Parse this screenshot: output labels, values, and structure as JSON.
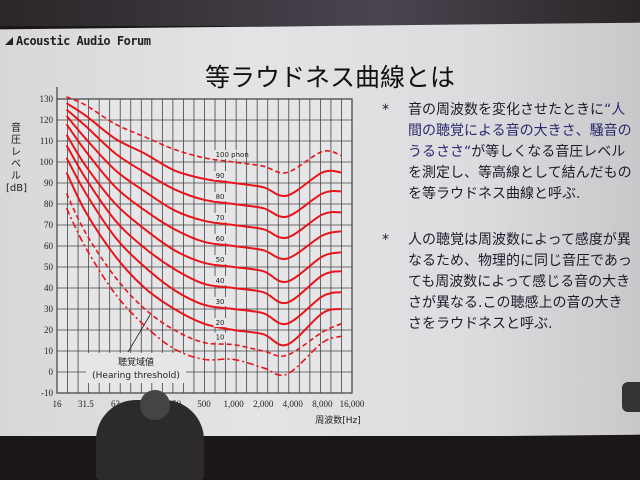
{
  "brand": "Acoustic Audio Forum",
  "title": "等ラウドネス曲線とは",
  "notes": [
    {
      "bullet": "*",
      "line1": "音の周波数を変化させたときに",
      "highlight": "“人間の聴覚による音の大きさ、騒音のうるささ“",
      "rest": "が等しくなる音圧レベルを測定し、等高線として結んだものを等ラウドネス曲線と呼ぶ."
    },
    {
      "bullet": "*",
      "text": "人の聴覚は周波数によって感度が異なるため、物理的に同じ音圧であっても周波数によって感じる音の大きさが異なる.この聴感上の音の大きさをラウドネスと呼ぶ."
    }
  ],
  "chart_data": {
    "type": "line",
    "title": "",
    "xlabel": "周波数[Hz]",
    "ylabel": "音圧レベル[dB]",
    "ylabel_lines": [
      "音",
      "圧",
      "レ",
      "ベ",
      "ル",
      "[dB]"
    ],
    "x_scale": "log",
    "xlim": [
      16,
      16000
    ],
    "ylim": [
      -10,
      130
    ],
    "grid": true,
    "color": "#e8141a",
    "x_ticks": [
      "16",
      "31.5",
      "63",
      "125",
      "250",
      "500",
      "1,000",
      "2,000",
      "4,000",
      "8,000",
      "16,000"
    ],
    "x_tick_values": [
      16,
      31.5,
      63,
      125,
      250,
      500,
      1000,
      2000,
      4000,
      8000,
      16000
    ],
    "y_ticks": [
      130,
      120,
      110,
      100,
      90,
      80,
      70,
      60,
      50,
      40,
      30,
      20,
      10,
      0,
      -10
    ],
    "x": [
      20,
      31.5,
      63,
      125,
      250,
      500,
      1000,
      2000,
      3500,
      8000,
      12500
    ],
    "series": [
      {
        "name": "聴覚域値 (Hearing threshold)",
        "style": "dash-dot",
        "values": [
          78,
          59,
          37,
          22,
          11,
          6,
          6,
          2,
          -1,
          14,
          17
        ]
      },
      {
        "name": "10",
        "style": "dashed",
        "values": [
          85,
          66,
          45,
          30,
          20,
          14,
          13,
          10,
          8,
          19,
          23
        ]
      },
      {
        "name": "20",
        "style": "solid",
        "values": [
          95,
          76,
          55,
          40,
          30,
          23,
          20,
          18,
          13,
          28,
          30
        ]
      },
      {
        "name": "30",
        "style": "solid",
        "values": [
          102,
          85,
          64,
          50,
          39,
          32,
          30,
          28,
          23,
          36,
          38
        ]
      },
      {
        "name": "40",
        "style": "solid",
        "values": [
          108,
          92,
          72,
          59,
          49,
          42,
          40,
          38,
          33,
          46,
          48
        ]
      },
      {
        "name": "50",
        "style": "solid",
        "values": [
          113,
          98,
          80,
          68,
          58,
          52,
          50,
          48,
          43,
          55,
          57
        ]
      },
      {
        "name": "60",
        "style": "solid",
        "values": [
          118,
          105,
          88,
          77,
          68,
          62,
          60,
          58,
          54,
          65,
          67
        ]
      },
      {
        "name": "70",
        "style": "solid",
        "values": [
          122,
          111,
          96,
          86,
          77,
          72,
          70,
          68,
          64,
          75,
          76
        ]
      },
      {
        "name": "80",
        "style": "solid",
        "values": [
          125,
          117,
          104,
          95,
          87,
          82,
          80,
          78,
          74,
          85,
          86
        ]
      },
      {
        "name": "90",
        "style": "solid",
        "values": [
          128,
          122,
          111,
          104,
          96,
          92,
          90,
          88,
          84,
          95,
          95
        ]
      },
      {
        "name": "100 phon",
        "style": "dashed",
        "values": [
          131,
          127,
          118,
          112,
          106,
          102,
          100,
          98,
          95,
          105,
          103
        ]
      }
    ],
    "threshold_label": [
      "聴覚域値",
      "(Hearing threshold)"
    ]
  }
}
